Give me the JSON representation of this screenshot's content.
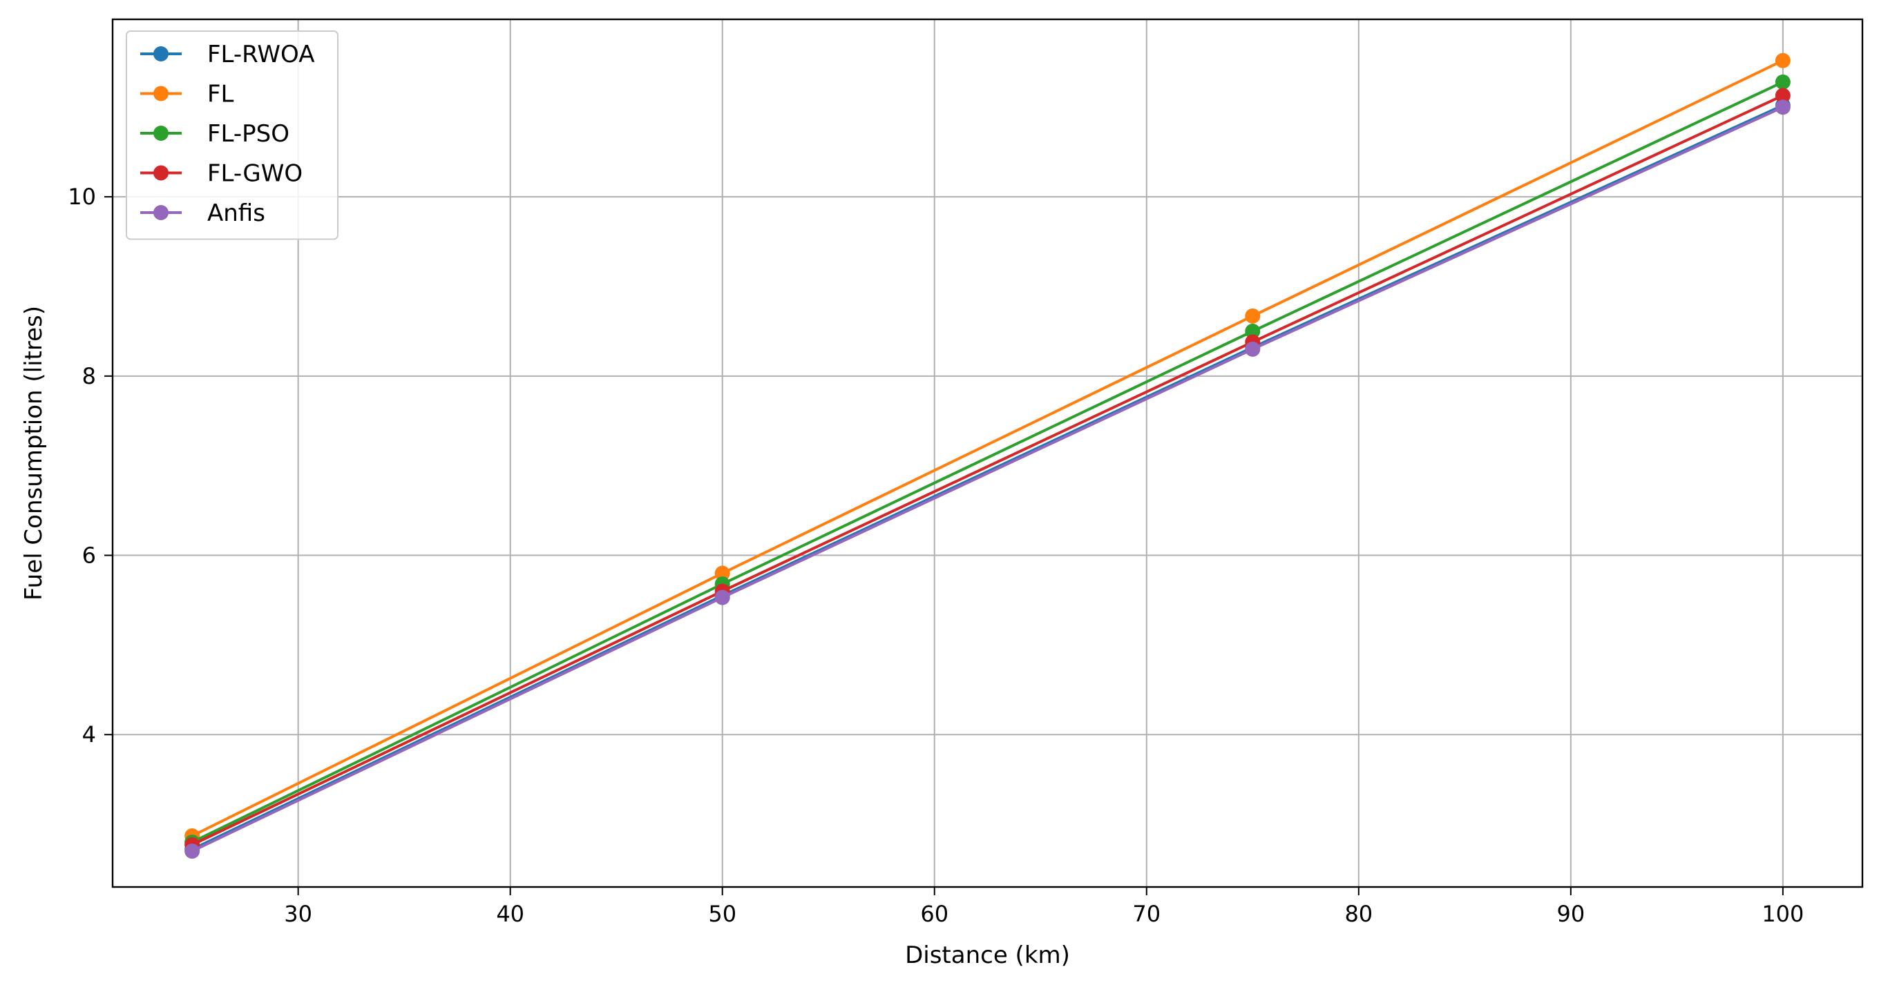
{
  "chart_data": {
    "type": "line",
    "title": "",
    "xlabel": "Distance (km)",
    "ylabel": "Fuel Consumption (litres)",
    "x": [
      25,
      50,
      75,
      100
    ],
    "xlim": [
      21.25,
      103.75
    ],
    "ylim": [
      2.3,
      11.98
    ],
    "xticks": [
      30,
      40,
      50,
      60,
      70,
      80,
      90,
      100
    ],
    "yticks": [
      4,
      6,
      8,
      10
    ],
    "grid": true,
    "legend_position": "top-left",
    "series": [
      {
        "name": "FL-RWOA",
        "color": "#1f77b4",
        "values": [
          2.72,
          5.55,
          8.32,
          11.02
        ]
      },
      {
        "name": "FL",
        "color": "#ff7f0e",
        "values": [
          2.87,
          5.8,
          8.67,
          11.52
        ]
      },
      {
        "name": "FL-PSO",
        "color": "#2ca02c",
        "values": [
          2.8,
          5.68,
          8.5,
          11.28
        ]
      },
      {
        "name": "FL-GWO",
        "color": "#d62728",
        "values": [
          2.77,
          5.6,
          8.38,
          11.13
        ]
      },
      {
        "name": "Anfis",
        "color": "#9467bd",
        "values": [
          2.7,
          5.53,
          8.3,
          11.0
        ]
      }
    ]
  }
}
